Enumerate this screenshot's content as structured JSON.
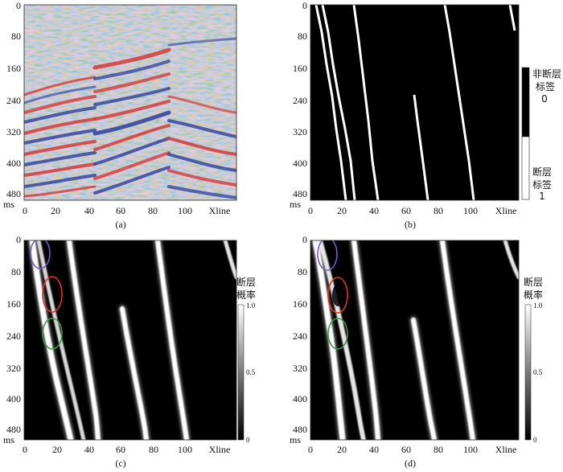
{
  "panels": [
    {
      "id": "a",
      "caption": "(a)",
      "y_ticks": [
        "0",
        "80",
        "160",
        "240",
        "320",
        "400",
        "480"
      ],
      "y_unit": "ms",
      "x_ticks": [
        "0",
        "20",
        "40",
        "60",
        "80",
        "100"
      ],
      "x_name": "Xline",
      "image": "seismic-amplitude-section"
    },
    {
      "id": "b",
      "caption": "(b)",
      "y_ticks": [
        "0",
        "80",
        "160",
        "240",
        "320",
        "400",
        "480"
      ],
      "y_unit": "ms",
      "x_ticks": [
        "0",
        "20",
        "40",
        "60",
        "80",
        "100"
      ],
      "x_name": "Xline",
      "image": "binary-fault-label",
      "colorbar": {
        "top_label_line1": "非断层",
        "top_label_line2": "标签",
        "top_value": "0",
        "bottom_label_line1": "断层",
        "bottom_label_line2": "标签",
        "bottom_value": "1"
      }
    },
    {
      "id": "c",
      "caption": "(c)",
      "y_ticks": [
        "0",
        "80",
        "160",
        "240",
        "320",
        "400",
        "480"
      ],
      "y_unit": "ms",
      "x_ticks": [
        "0",
        "20",
        "40",
        "60",
        "80",
        "100"
      ],
      "x_name": "Xline",
      "image": "fault-probability-map",
      "colorbar": {
        "title_line1": "断层",
        "title_line2": "概率",
        "ticks": [
          "1.0",
          "0.5",
          "0"
        ]
      },
      "highlight_colors": [
        "#7a5cc4",
        "#e0312a",
        "#3c9a48"
      ]
    },
    {
      "id": "d",
      "caption": "(d)",
      "y_ticks": [
        "0",
        "80",
        "160",
        "240",
        "320",
        "400",
        "480"
      ],
      "y_unit": "ms",
      "x_ticks": [
        "0",
        "20",
        "40",
        "60",
        "80",
        "100"
      ],
      "x_name": "Xline",
      "image": "fault-probability-map",
      "colorbar": {
        "title_line1": "断层",
        "title_line2": "概率",
        "ticks": [
          "1.0",
          "0.5",
          "0"
        ]
      },
      "highlight_colors": [
        "#7a5cc4",
        "#e0312a",
        "#3c9a48"
      ]
    }
  ]
}
